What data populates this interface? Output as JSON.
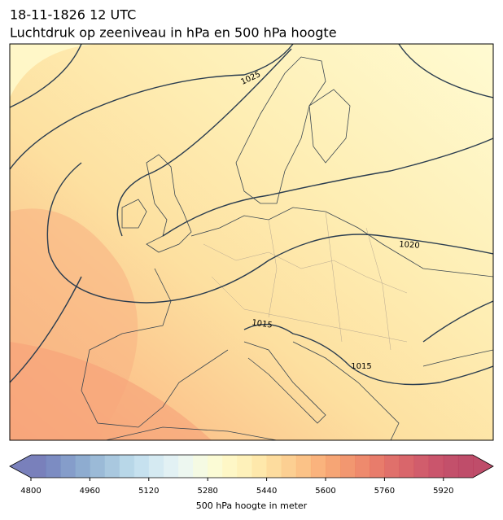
{
  "title": "18-11-1826 12 UTC",
  "subtitle": "Luchtdruk op zeeniveau in hPa en 500 hPa hoogte",
  "contour_labels": [
    1025,
    1020,
    1015,
    1015
  ],
  "colorbar": {
    "label": "500 hPa hoogte in meter",
    "lim": [
      4800,
      6000
    ],
    "ticks": [
      4800,
      4960,
      5120,
      5280,
      5440,
      5600,
      5760,
      5920
    ],
    "colors": [
      "#6a72b4",
      "#6e80bb",
      "#7892c4",
      "#82a3cb",
      "#90b2d3",
      "#a0c2dc",
      "#b0d3e6",
      "#c0deed",
      "#d0e8f1",
      "#dff0f3",
      "#ebf6ee",
      "#f4f9e0",
      "#fbfbd0",
      "#fef6c0",
      "#feefb2",
      "#fee5a2",
      "#fdd893",
      "#fcca86",
      "#fbbb7a",
      "#f9ab6f",
      "#f59b66",
      "#f18c60",
      "#ec7d5d",
      "#e56e5b",
      "#dd605b",
      "#d5555b",
      "#cc4b5c",
      "#c4435c",
      "#bd3d5b",
      "#b83a5a"
    ]
  }
}
